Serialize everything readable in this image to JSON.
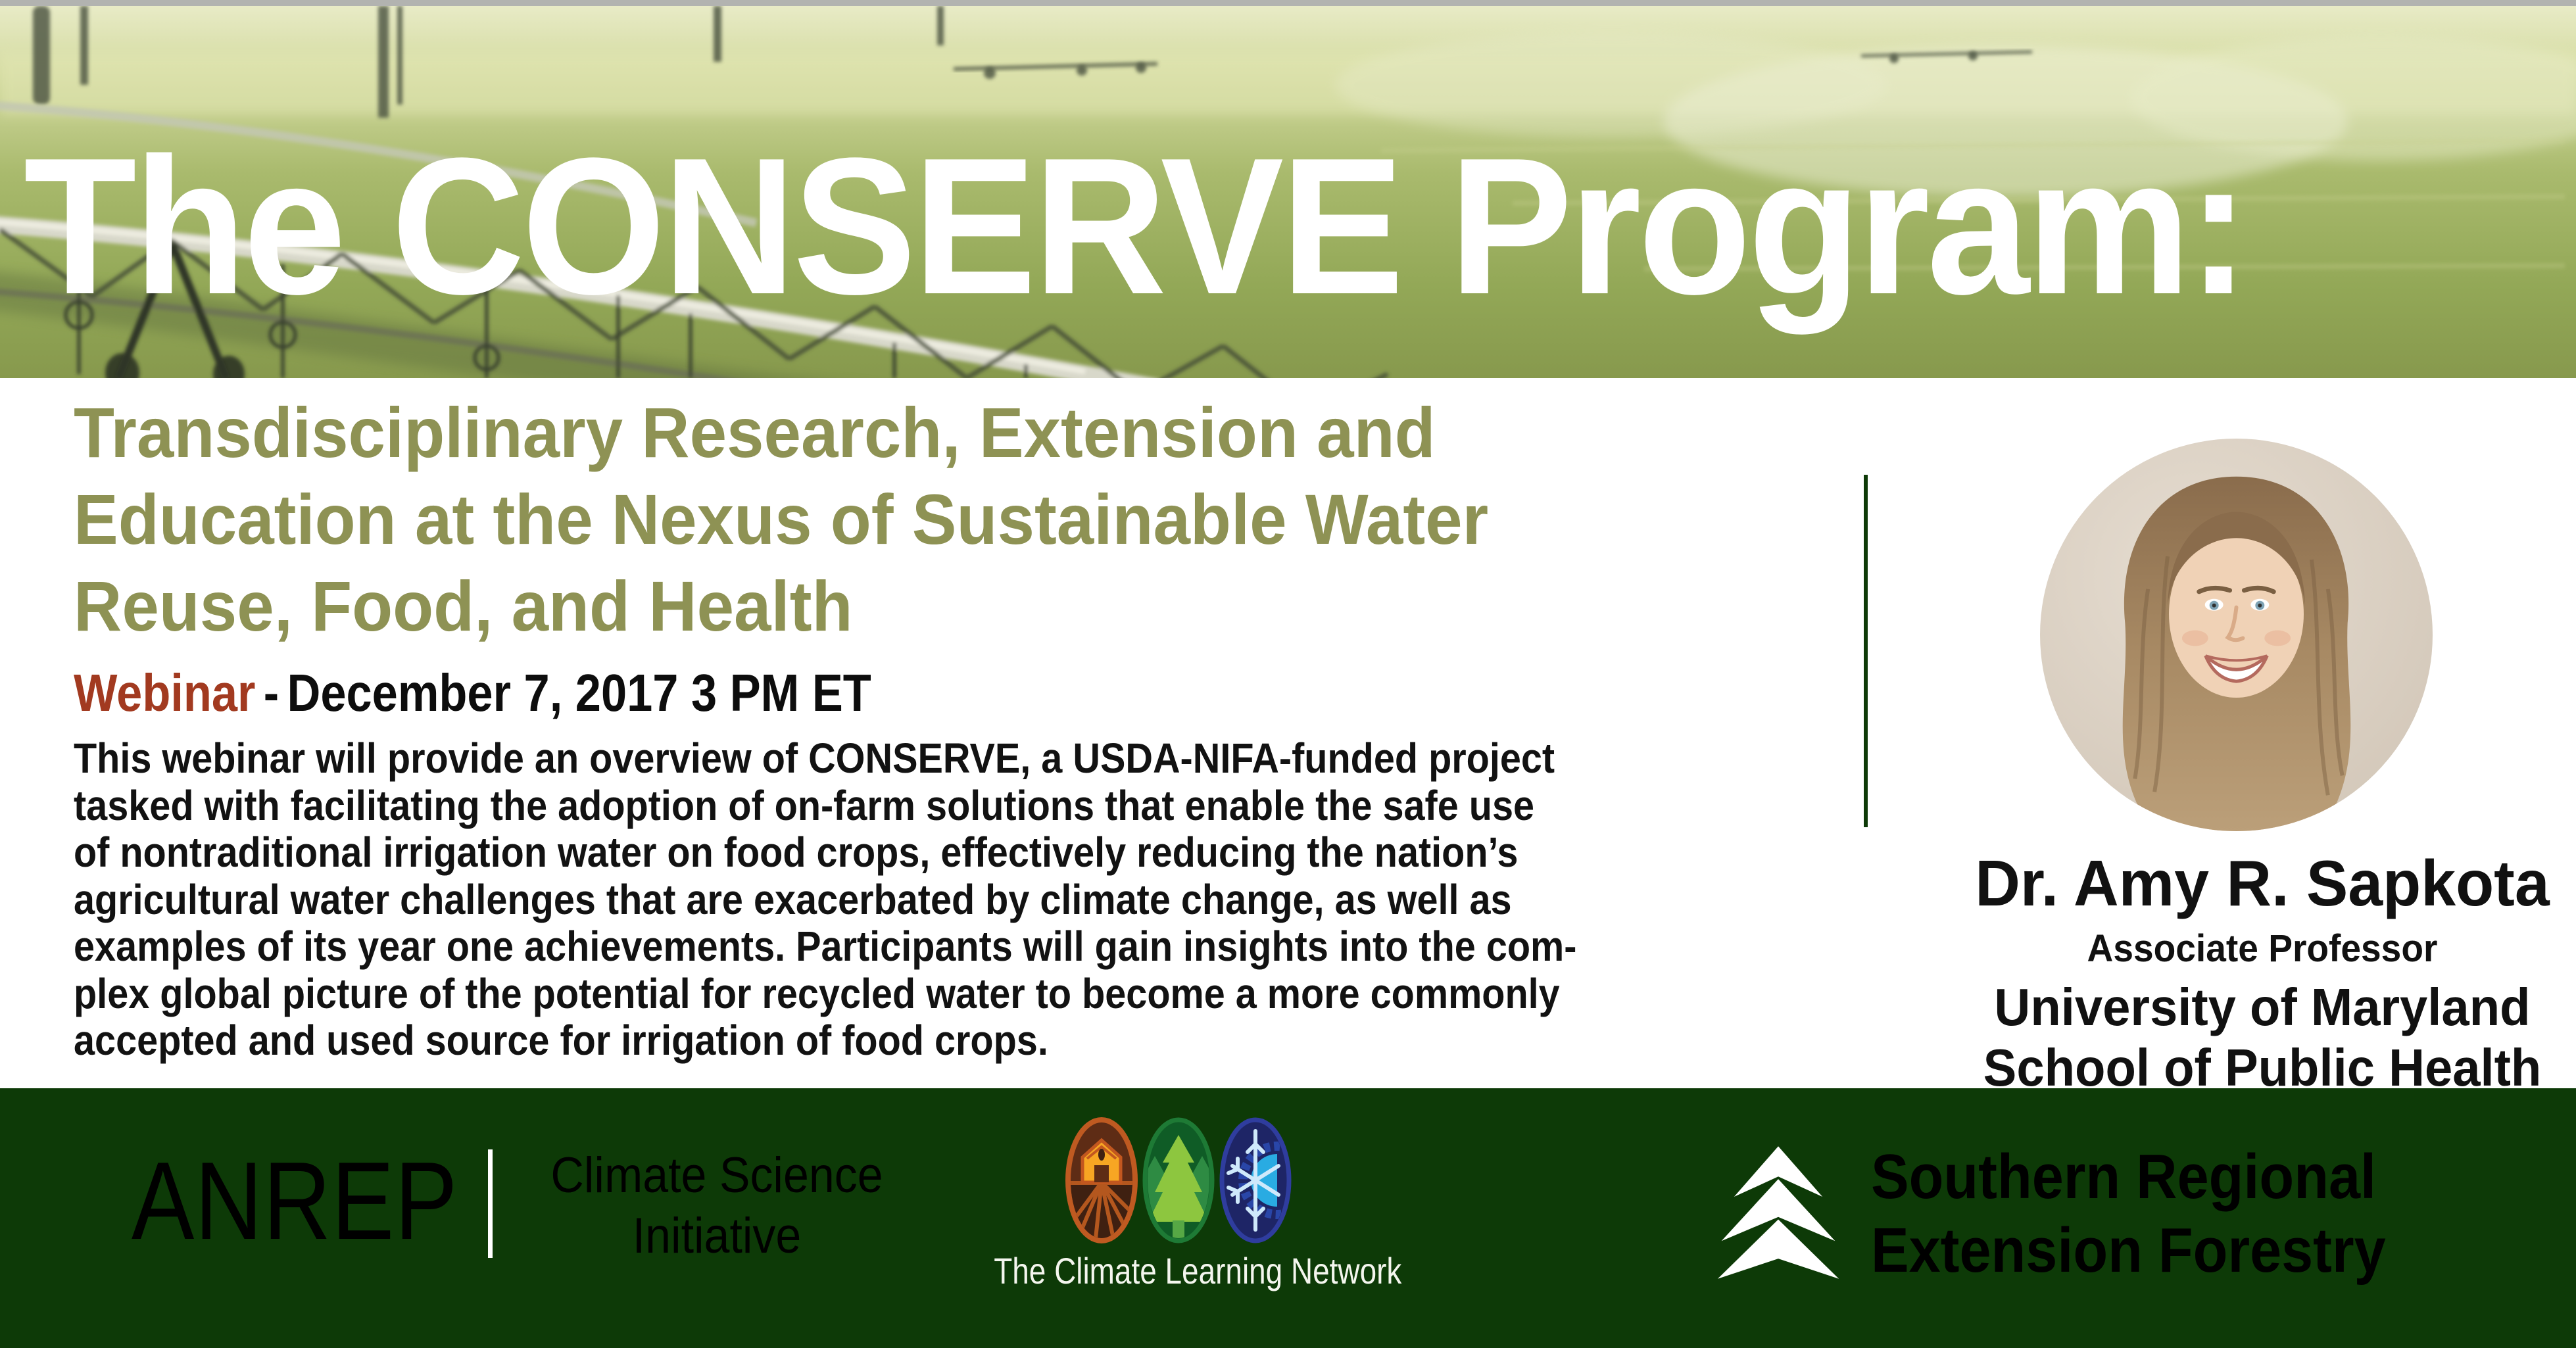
{
  "hero": {
    "title": "The CONSERVE Program:",
    "background_description": "center-pivot irrigation machine spraying a green farm field"
  },
  "main": {
    "subtitle_lines": [
      "Transdisciplinary Research, Extension and",
      "Education at the Nexus of Sustainable Water",
      "Reuse, Food, and Health"
    ],
    "event": {
      "label": "Webinar",
      "separator": "-",
      "datetime": "December 7, 2017 3 PM ET"
    },
    "body_lines": [
      "This webinar will provide an overview of CONSERVE, a USDA-NIFA-funded project",
      "tasked with facilitating the adoption of on-farm solutions that enable the safe use",
      "of nontraditional irrigation water on food crops, effectively reducing the nation’s",
      "agricultural water challenges that are exacerbated by climate change, as well as",
      "examples of its year one achievements. Participants will gain insights into the com-",
      "plex global picture of the potential for recycled water to become a more commonly",
      "accepted and used source for irrigation of food crops."
    ],
    "speaker": {
      "name": "Dr. Amy R. Sapkota",
      "title": "Associate Professor",
      "org_line1": "University of Maryland",
      "org_line2": "School of Public Health"
    }
  },
  "footer": {
    "anrep": {
      "acronym": "ANREP",
      "label_line1": "Climate Science",
      "label_line2": "Initiative"
    },
    "climate_learning_network": {
      "caption": "The Climate Learning Network",
      "icons": [
        "farm-field-icon",
        "pine-tree-icon",
        "snowflake-sun-icon"
      ]
    },
    "southern_regional": {
      "line1": "Southern Regional",
      "line2": "Extension Forestry"
    }
  },
  "colors": {
    "footer_green": "#0d3a07",
    "webinar_red": "#a23a20",
    "subtitle_olive": "#8e9254",
    "top_strip_gray": "#b2b3b0",
    "farm_logo_orange": "#bf5a21",
    "tree_logo_green": "#8dc63f",
    "snow_logo_navy": "#1e2566",
    "snow_logo_lightblue": "#29abe2"
  }
}
